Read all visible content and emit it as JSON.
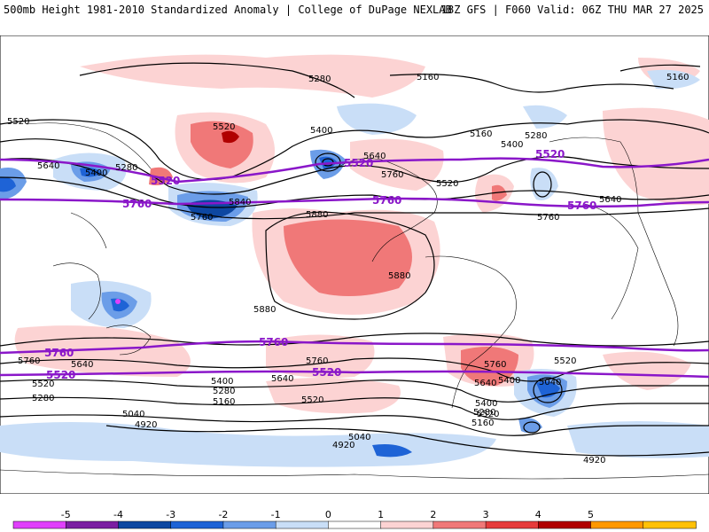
{
  "header": {
    "title": "500mb Height 1981-2010 Standardized Anomaly | College of DuPage NEXLAB",
    "run_info": "18Z GFS | F060 Valid: 06Z THU MAR 27 2025"
  },
  "contour_labels": {
    "black": [
      "5280",
      "5160",
      "5160",
      "5520",
      "5640",
      "5280",
      "5400",
      "5400",
      "5520",
      "5160",
      "5280",
      "5400",
      "5520",
      "5640",
      "5640",
      "5760",
      "5880",
      "5880",
      "5880",
      "5760",
      "5840",
      "5760",
      "5760",
      "5760",
      "5640",
      "5400",
      "5280",
      "5160",
      "5520",
      "5520",
      "5640",
      "5520",
      "5280",
      "5040",
      "4920",
      "5040",
      "4920",
      "5040",
      "5400",
      "5280",
      "5160",
      "4920",
      "5400",
      "5640",
      "5760",
      "5520"
    ],
    "purple": [
      "5520",
      "5520",
      "5520",
      "5760",
      "5760",
      "5760",
      "5760",
      "5760",
      "5520",
      "5520"
    ]
  },
  "colorbar": {
    "ticks": [
      "-5",
      "-4",
      "-3",
      "-2",
      "-1",
      "0",
      "1",
      "2",
      "3",
      "4",
      "5"
    ],
    "colors": [
      "#e040fb",
      "#7b1fa2",
      "#0d47a1",
      "#1e63d6",
      "#6b9de8",
      "#c9def7",
      "#ffffff",
      "#fcd3d3",
      "#f07878",
      "#e63c3c",
      "#b00000",
      "#ff9800",
      "#ffc107"
    ]
  }
}
